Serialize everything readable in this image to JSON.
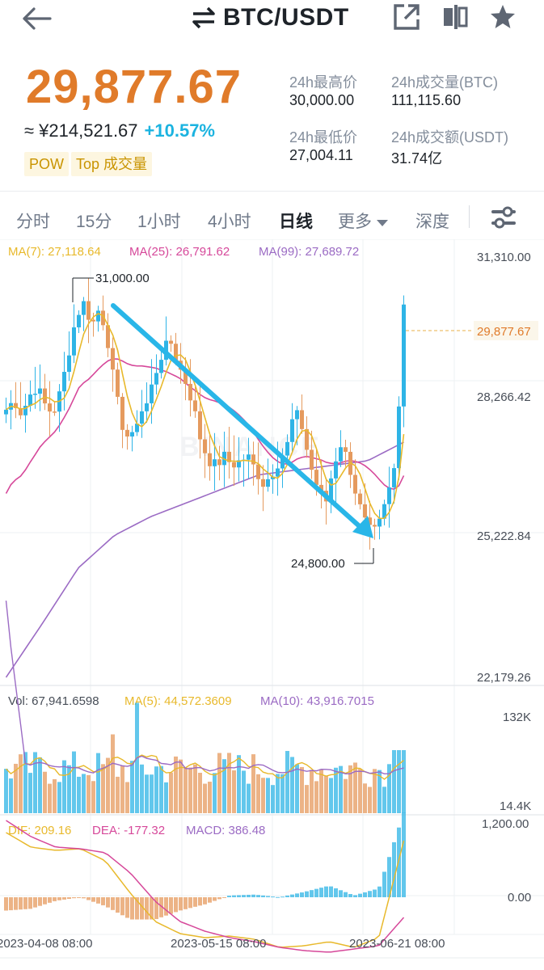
{
  "header": {
    "pair": "BTC/USDT",
    "icons": [
      "back-arrow-icon",
      "swap-icon",
      "share-icon",
      "split-screen-icon",
      "favorite-star-icon"
    ]
  },
  "ticker": {
    "last_price": "29,877.67",
    "cny_price": "≈ ¥214,521.67",
    "change": "+10.57%",
    "tags": [
      "POW",
      "Top 成交量"
    ],
    "stats": {
      "high_label": "24h最高价",
      "high_value": "30,000.00",
      "low_label": "24h最低价",
      "low_value": "27,004.11",
      "vol_btc_label": "24h成交量(BTC)",
      "vol_btc_value": "111,115.60",
      "vol_usdt_label": "24h成交额(USDT)",
      "vol_usdt_value": "31.74亿"
    }
  },
  "intervals": {
    "items": [
      "分时",
      "15分",
      "1小时",
      "4小时",
      "日线",
      "更多",
      "深度"
    ],
    "active": "日线",
    "settings_icon": "sliders-icon"
  },
  "colors": {
    "up": "#2eb4e6",
    "down": "#e59a5e",
    "ma7": "#e8b92c",
    "ma25": "#d6489a",
    "ma99": "#9b6bc4",
    "dif": "#e8b92c",
    "dea": "#d6489a",
    "price": "#e07b2a",
    "arrow": "#29b6e8"
  },
  "chart_data": {
    "type": "candlestick",
    "interval": "日线",
    "main": {
      "legend": {
        "ma7": "MA(7): 27,118.64",
        "ma25": "MA(25): 26,791.62",
        "ma99": "MA(99): 27,689.72"
      },
      "y_ticks": [
        "31,310.00",
        "28,266.42",
        "25,222.84",
        "22,179.26"
      ],
      "ylim": [
        22179.26,
        31310.0
      ],
      "high_marker": "31,000.00",
      "low_marker": "24,800.00",
      "last_price_tag": "29,877.67",
      "watermark": "BINANCE"
    },
    "volume": {
      "legend": {
        "vol": "Vol: 67,941.6598",
        "ma5": "MA(5): 44,572.3609",
        "ma10": "MA(10): 43,916.7015"
      },
      "y_ticks": [
        "132K",
        "14.4K"
      ]
    },
    "macd": {
      "legend": {
        "dif": "DIF: 209.16",
        "dea": "DEA: -177.32",
        "macd": "MACD: 386.48"
      },
      "y_ticks": [
        "1,200.00",
        "0.00"
      ]
    },
    "x_ticks": [
      "2023-04-08 08:00",
      "2023-05-15 08:00",
      "2023-06-21 08:00"
    ]
  }
}
